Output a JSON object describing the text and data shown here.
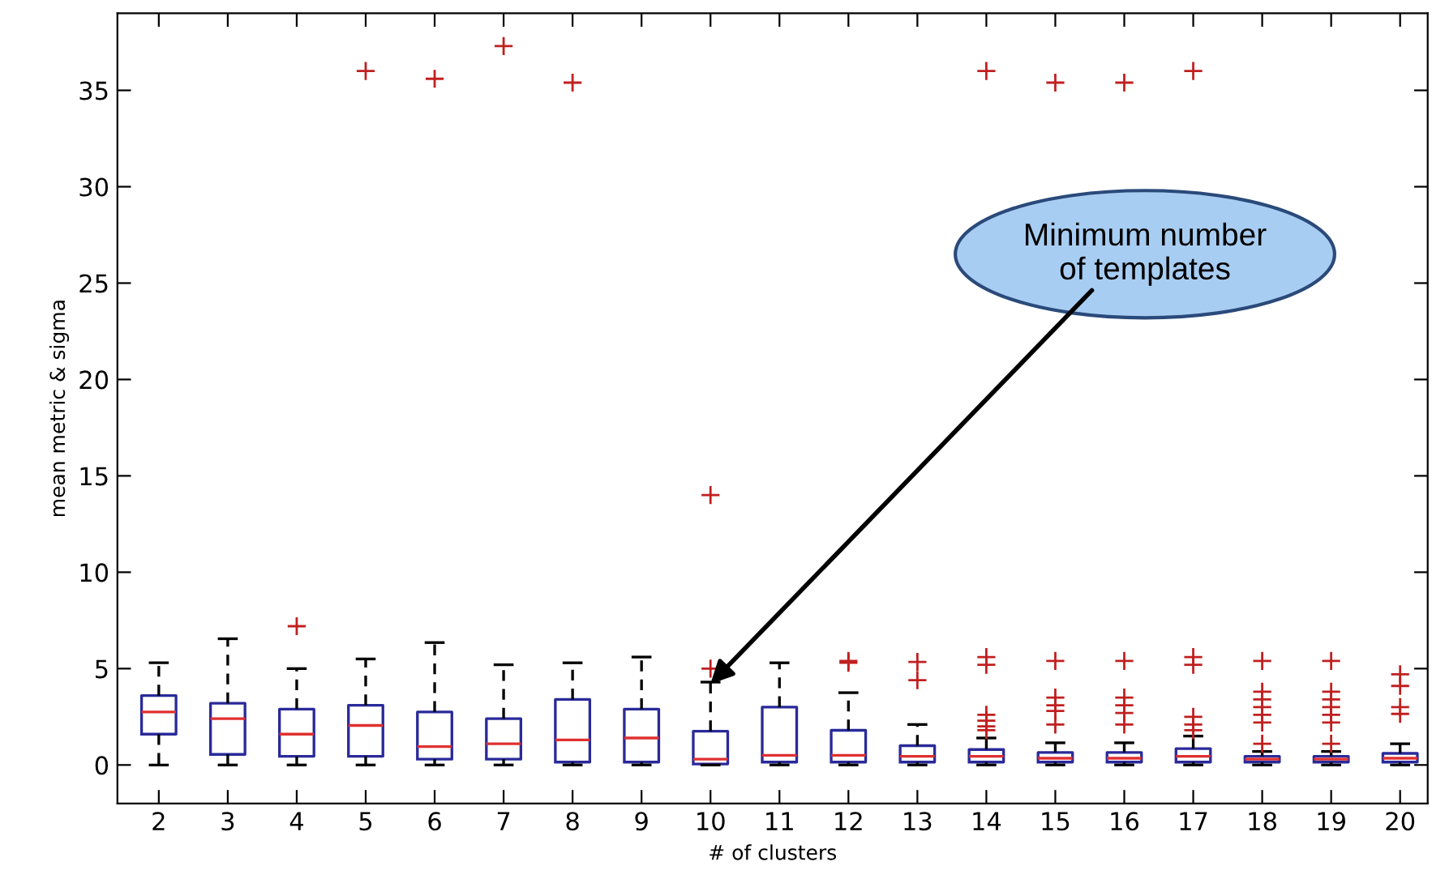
{
  "chart_data": {
    "type": "box",
    "xlabel": "# of clusters",
    "ylabel": "mean metric & sigma",
    "categories": [
      "2",
      "3",
      "4",
      "5",
      "6",
      "7",
      "8",
      "9",
      "10",
      "11",
      "12",
      "13",
      "14",
      "15",
      "16",
      "17",
      "18",
      "19",
      "20"
    ],
    "series": [
      {
        "color": "#2a2a9a",
        "boxes": [
          {
            "low": 0,
            "q1": 1.6,
            "median": 2.75,
            "q3": 3.6,
            "high": 5.3
          },
          {
            "low": 0,
            "q1": 0.55,
            "median": 2.4,
            "q3": 3.2,
            "high": 6.55
          },
          {
            "low": 0,
            "q1": 0.45,
            "median": 1.6,
            "q3": 2.9,
            "high": 5.0,
            "outliers": [
              7.2
            ]
          },
          {
            "low": 0,
            "q1": 0.45,
            "median": 2.05,
            "q3": 3.1,
            "high": 5.5,
            "outliers": [
              36.0
            ]
          },
          {
            "low": 0,
            "q1": 0.3,
            "median": 0.95,
            "q3": 2.75,
            "high": 6.35,
            "outliers": [
              35.6
            ]
          },
          {
            "low": 0,
            "q1": 0.3,
            "median": 1.1,
            "q3": 2.4,
            "high": 5.2,
            "outliers": [
              37.3
            ]
          },
          {
            "low": 0,
            "q1": 0.15,
            "median": 1.3,
            "q3": 3.4,
            "high": 5.3,
            "outliers": [
              35.4
            ]
          },
          {
            "low": 0,
            "q1": 0.15,
            "median": 1.4,
            "q3": 2.9,
            "high": 5.6
          },
          {
            "low": 0,
            "q1": 0.05,
            "median": 0.3,
            "q3": 1.75,
            "high": 4.3,
            "outliers": [
              14.0,
              5.0
            ]
          },
          {
            "low": 0,
            "q1": 0.15,
            "median": 0.5,
            "q3": 3.0,
            "high": 5.3
          },
          {
            "low": 0,
            "q1": 0.15,
            "median": 0.5,
            "q3": 1.8,
            "high": 3.75,
            "outliers": [
              5.3,
              5.4
            ]
          },
          {
            "low": 0,
            "q1": 0.15,
            "median": 0.45,
            "q3": 1.0,
            "high": 2.1,
            "outliers": [
              5.35,
              4.4
            ]
          },
          {
            "low": 0,
            "q1": 0.15,
            "median": 0.45,
            "q3": 0.8,
            "high": 1.4,
            "outliers": [
              36.0,
              5.6,
              5.2,
              2.6,
              2.3,
              2.0,
              1.8
            ]
          },
          {
            "low": 0,
            "q1": 0.15,
            "median": 0.35,
            "q3": 0.65,
            "high": 1.15,
            "outliers": [
              35.4,
              5.4,
              3.5,
              3.1,
              2.8,
              2.1
            ]
          },
          {
            "low": 0,
            "q1": 0.15,
            "median": 0.35,
            "q3": 0.65,
            "high": 1.15,
            "outliers": [
              35.4,
              5.4,
              3.5,
              3.1,
              2.7,
              2.1
            ]
          },
          {
            "low": 0,
            "q1": 0.15,
            "median": 0.45,
            "q3": 0.85,
            "high": 1.5,
            "outliers": [
              36.0,
              5.6,
              5.2,
              2.5,
              2.1,
              1.8
            ]
          },
          {
            "low": 0,
            "q1": 0.15,
            "median": 0.3,
            "q3": 0.45,
            "high": 0.7,
            "outliers": [
              5.4,
              3.8,
              3.4,
              3.0,
              2.6,
              2.2,
              1.1
            ]
          },
          {
            "low": 0,
            "q1": 0.15,
            "median": 0.3,
            "q3": 0.45,
            "high": 0.7,
            "outliers": [
              5.4,
              3.8,
              3.4,
              3.0,
              2.6,
              2.2,
              1.1
            ]
          },
          {
            "low": 0,
            "q1": 0.15,
            "median": 0.35,
            "q3": 0.6,
            "high": 1.1,
            "outliers": [
              4.7,
              4.1,
              3.0,
              2.65
            ]
          }
        ]
      }
    ],
    "ylim": [
      -2,
      39
    ],
    "yticks": [
      0,
      5,
      10,
      15,
      20,
      25,
      30,
      35
    ],
    "grid": false,
    "annotations": [
      {
        "text": "Minimum number\nof templates",
        "x": "10",
        "y": 4.2
      }
    ]
  }
}
